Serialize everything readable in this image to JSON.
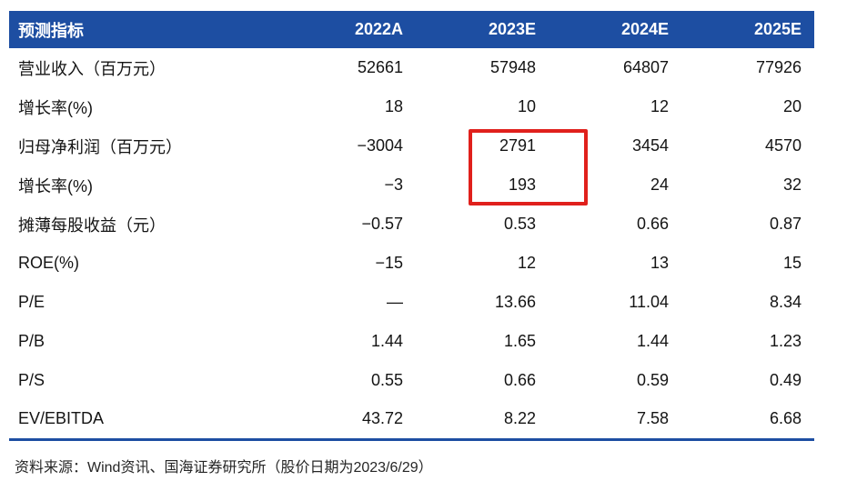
{
  "colors": {
    "header_bg": "#1d4ea2",
    "header_text": "#ffffff",
    "bottom_rule": "#1d4ea2",
    "highlight_border": "#e0201c"
  },
  "table": {
    "header_label": "预测指标",
    "columns": [
      "2022A",
      "2023E",
      "2024E",
      "2025E"
    ],
    "rows": [
      {
        "label": "营业收入（百万元）",
        "values": [
          "52661",
          "57948",
          "64807",
          "77926"
        ]
      },
      {
        "label": "增长率(%)",
        "values": [
          "18",
          "10",
          "12",
          "20"
        ]
      },
      {
        "label": "归母净利润（百万元）",
        "values": [
          "−3004",
          "2791",
          "3454",
          "4570"
        ]
      },
      {
        "label": "增长率(%)",
        "values": [
          "−3",
          "193",
          "24",
          "32"
        ]
      },
      {
        "label": "摊薄每股收益（元）",
        "values": [
          "−0.57",
          "0.53",
          "0.66",
          "0.87"
        ]
      },
      {
        "label": "ROE(%)",
        "values": [
          "−15",
          "12",
          "13",
          "15"
        ]
      },
      {
        "label": "P/E",
        "values": [
          "—",
          "13.66",
          "11.04",
          "8.34"
        ]
      },
      {
        "label": "P/B",
        "values": [
          "1.44",
          "1.65",
          "1.44",
          "1.23"
        ]
      },
      {
        "label": "P/S",
        "values": [
          "0.55",
          "0.66",
          "0.59",
          "0.49"
        ]
      },
      {
        "label": "EV/EBITDA",
        "values": [
          "43.72",
          "8.22",
          "7.58",
          "6.68"
        ]
      }
    ],
    "highlight": {
      "column": "2023E",
      "highlighted_values": [
        "2791",
        "193"
      ]
    }
  },
  "footer": {
    "source": "资料来源：Wind资讯、国海证券研究所（股价日期为2023/6/29）"
  }
}
